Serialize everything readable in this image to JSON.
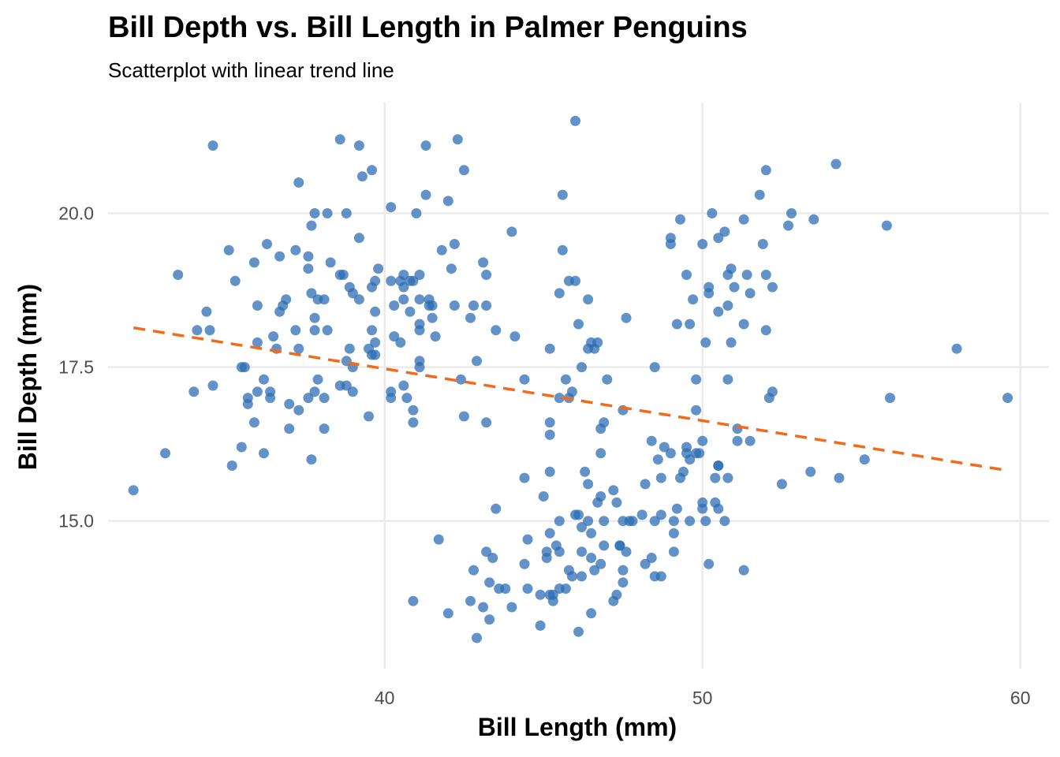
{
  "chart_data": {
    "type": "scatter",
    "title": "Bill Depth vs. Bill Length in Palmer Penguins",
    "subtitle": "Scatterplot with linear trend line",
    "xlabel": "Bill Length (mm)",
    "ylabel": "Bill Depth (mm)",
    "xlim": [
      31.3,
      60.9
    ],
    "ylim": [
      12.6,
      21.8
    ],
    "xticks": [
      40,
      50,
      60
    ],
    "xtick_labels": [
      "40",
      "50",
      "60"
    ],
    "yticks": [
      15,
      17.5,
      20
    ],
    "ytick_labels": [
      "15.0",
      "17.5",
      "20.0"
    ],
    "grid": true,
    "legend": "none",
    "point_color": "#2e6db4",
    "trend_color": "#f26b1d",
    "trend_line": {
      "style": "dashed",
      "x": [
        32.1,
        59.6
      ],
      "y": [
        18.14,
        15.82
      ]
    },
    "points": [
      [
        32.1,
        15.5
      ],
      [
        33.1,
        16.1
      ],
      [
        33.5,
        19.0
      ],
      [
        34.0,
        17.1
      ],
      [
        34.1,
        18.1
      ],
      [
        34.4,
        18.4
      ],
      [
        34.5,
        18.1
      ],
      [
        34.6,
        21.1
      ],
      [
        34.6,
        17.2
      ],
      [
        35.1,
        19.4
      ],
      [
        35.2,
        15.9
      ],
      [
        35.3,
        18.9
      ],
      [
        35.5,
        16.2
      ],
      [
        35.5,
        17.5
      ],
      [
        35.6,
        17.5
      ],
      [
        35.7,
        16.9
      ],
      [
        35.7,
        17.0
      ],
      [
        35.9,
        19.2
      ],
      [
        35.9,
        16.6
      ],
      [
        36.0,
        18.5
      ],
      [
        36.0,
        17.9
      ],
      [
        36.0,
        17.1
      ],
      [
        36.2,
        17.3
      ],
      [
        36.2,
        16.1
      ],
      [
        36.3,
        19.5
      ],
      [
        36.4,
        17.1
      ],
      [
        36.4,
        17.0
      ],
      [
        36.5,
        18.0
      ],
      [
        36.6,
        17.8
      ],
      [
        36.7,
        18.4
      ],
      [
        36.7,
        19.3
      ],
      [
        36.8,
        18.5
      ],
      [
        36.9,
        18.6
      ],
      [
        37.0,
        16.9
      ],
      [
        37.0,
        16.5
      ],
      [
        37.2,
        19.4
      ],
      [
        37.2,
        18.1
      ],
      [
        37.3,
        20.5
      ],
      [
        37.3,
        17.8
      ],
      [
        37.3,
        16.8
      ],
      [
        37.6,
        19.3
      ],
      [
        37.6,
        19.1
      ],
      [
        37.6,
        17.0
      ],
      [
        37.7,
        18.7
      ],
      [
        37.7,
        16.0
      ],
      [
        37.7,
        19.8
      ],
      [
        37.8,
        20.0
      ],
      [
        37.8,
        18.3
      ],
      [
        37.8,
        18.1
      ],
      [
        37.8,
        17.1
      ],
      [
        37.9,
        18.6
      ],
      [
        37.9,
        17.3
      ],
      [
        38.1,
        18.6
      ],
      [
        38.1,
        17.0
      ],
      [
        38.1,
        16.5
      ],
      [
        38.2,
        18.1
      ],
      [
        38.2,
        20.0
      ],
      [
        38.3,
        19.2
      ],
      [
        38.6,
        21.2
      ],
      [
        38.6,
        17.2
      ],
      [
        38.6,
        19.0
      ],
      [
        38.7,
        19.0
      ],
      [
        38.8,
        17.2
      ],
      [
        38.8,
        20.0
      ],
      [
        38.8,
        17.6
      ],
      [
        38.9,
        18.8
      ],
      [
        38.9,
        17.8
      ],
      [
        39.0,
        17.5
      ],
      [
        39.0,
        17.1
      ],
      [
        39.0,
        18.7
      ],
      [
        39.2,
        19.6
      ],
      [
        39.2,
        21.1
      ],
      [
        39.2,
        18.6
      ],
      [
        39.3,
        20.6
      ],
      [
        39.5,
        16.7
      ],
      [
        39.5,
        17.8
      ],
      [
        39.6,
        18.8
      ],
      [
        39.6,
        18.1
      ],
      [
        39.6,
        17.7
      ],
      [
        39.6,
        20.7
      ],
      [
        39.7,
        18.9
      ],
      [
        39.7,
        18.4
      ],
      [
        39.7,
        17.9
      ],
      [
        39.7,
        17.7
      ],
      [
        39.8,
        19.1
      ],
      [
        40.2,
        17.0
      ],
      [
        40.2,
        17.1
      ],
      [
        40.2,
        18.9
      ],
      [
        40.2,
        20.1
      ],
      [
        40.3,
        18.5
      ],
      [
        40.3,
        18.0
      ],
      [
        40.5,
        18.9
      ],
      [
        40.5,
        17.9
      ],
      [
        40.6,
        18.6
      ],
      [
        40.6,
        19.0
      ],
      [
        40.6,
        18.8
      ],
      [
        40.6,
        17.2
      ],
      [
        40.7,
        17.0
      ],
      [
        40.8,
        18.4
      ],
      [
        40.8,
        18.9
      ],
      [
        40.9,
        16.6
      ],
      [
        40.9,
        18.9
      ],
      [
        40.9,
        16.8
      ],
      [
        41.0,
        20.0
      ],
      [
        41.1,
        19.0
      ],
      [
        41.1,
        18.6
      ],
      [
        41.1,
        17.5
      ],
      [
        41.1,
        18.2
      ],
      [
        41.1,
        18.1
      ],
      [
        41.1,
        17.6
      ],
      [
        41.3,
        21.1
      ],
      [
        41.3,
        20.3
      ],
      [
        41.4,
        18.6
      ],
      [
        41.4,
        18.5
      ],
      [
        41.5,
        18.3
      ],
      [
        41.5,
        18.5
      ],
      [
        41.6,
        18.0
      ],
      [
        41.8,
        19.4
      ],
      [
        42.0,
        20.2
      ],
      [
        42.1,
        19.1
      ],
      [
        42.2,
        18.5
      ],
      [
        42.2,
        19.5
      ],
      [
        42.3,
        21.2
      ],
      [
        42.4,
        17.3
      ],
      [
        42.5,
        20.7
      ],
      [
        42.5,
        16.7
      ],
      [
        42.7,
        18.3
      ],
      [
        42.8,
        18.5
      ],
      [
        42.9,
        17.6
      ],
      [
        43.1,
        19.2
      ],
      [
        43.2,
        19.0
      ],
      [
        43.2,
        18.5
      ],
      [
        43.2,
        16.6
      ],
      [
        43.5,
        18.1
      ],
      [
        44.0,
        19.7
      ],
      [
        44.1,
        18.0
      ],
      [
        44.4,
        17.3
      ],
      [
        45.2,
        17.8
      ],
      [
        45.2,
        16.6
      ],
      [
        45.2,
        16.4
      ],
      [
        45.6,
        20.3
      ],
      [
        45.6,
        19.4
      ],
      [
        45.5,
        18.7
      ],
      [
        45.7,
        17.3
      ],
      [
        45.8,
        18.9
      ],
      [
        45.8,
        17.0
      ],
      [
        46.0,
        18.9
      ],
      [
        46.0,
        21.5
      ],
      [
        46.1,
        18.2
      ],
      [
        46.2,
        17.5
      ],
      [
        45.5,
        17.0
      ],
      [
        46.4,
        17.8
      ],
      [
        46.4,
        18.6
      ],
      [
        46.5,
        17.9
      ],
      [
        46.6,
        17.8
      ],
      [
        46.7,
        17.9
      ],
      [
        46.8,
        16.5
      ],
      [
        46.9,
        16.6
      ],
      [
        47.0,
        17.3
      ],
      [
        47.6,
        18.3
      ],
      [
        47.5,
        16.8
      ],
      [
        45.9,
        17.1
      ],
      [
        48.5,
        17.5
      ],
      [
        49.0,
        19.5
      ],
      [
        49.0,
        19.6
      ],
      [
        49.2,
        18.2
      ],
      [
        49.3,
        19.9
      ],
      [
        49.5,
        19.0
      ],
      [
        49.6,
        18.2
      ],
      [
        49.7,
        18.6
      ],
      [
        49.8,
        17.3
      ],
      [
        49.8,
        16.8
      ],
      [
        50.1,
        17.9
      ],
      [
        50.2,
        18.7
      ],
      [
        50.2,
        18.8
      ],
      [
        50.3,
        20.0
      ],
      [
        50.5,
        18.4
      ],
      [
        50.5,
        19.6
      ],
      [
        50.7,
        19.7
      ],
      [
        50.8,
        19.0
      ],
      [
        50.8,
        18.5
      ],
      [
        50.9,
        17.9
      ],
      [
        50.9,
        19.1
      ],
      [
        51.0,
        18.8
      ],
      [
        51.3,
        19.9
      ],
      [
        51.3,
        18.2
      ],
      [
        51.4,
        19.0
      ],
      [
        51.5,
        18.7
      ],
      [
        51.9,
        19.5
      ],
      [
        52.0,
        19.0
      ],
      [
        52.0,
        18.1
      ],
      [
        52.2,
        18.8
      ],
      [
        52.0,
        20.7
      ],
      [
        51.8,
        20.3
      ],
      [
        52.7,
        19.8
      ],
      [
        52.8,
        20.0
      ],
      [
        53.5,
        19.9
      ],
      [
        54.2,
        20.8
      ],
      [
        55.8,
        19.8
      ],
      [
        50.0,
        19.5
      ],
      [
        50.8,
        17.3
      ],
      [
        52.1,
        17.0
      ],
      [
        52.2,
        17.1
      ],
      [
        58.0,
        17.8
      ],
      [
        59.6,
        17.0
      ],
      [
        55.9,
        17.0
      ],
      [
        41.7,
        14.7
      ],
      [
        40.9,
        13.7
      ],
      [
        42.0,
        13.5
      ],
      [
        42.7,
        13.7
      ],
      [
        42.8,
        14.2
      ],
      [
        42.9,
        13.1
      ],
      [
        43.2,
        14.5
      ],
      [
        43.3,
        13.4
      ],
      [
        43.3,
        14.0
      ],
      [
        43.4,
        14.4
      ],
      [
        43.5,
        15.2
      ],
      [
        43.6,
        13.9
      ],
      [
        43.8,
        13.9
      ],
      [
        44.0,
        13.6
      ],
      [
        44.4,
        15.7
      ],
      [
        44.4,
        14.3
      ],
      [
        44.5,
        14.7
      ],
      [
        44.9,
        13.8
      ],
      [
        44.9,
        13.3
      ],
      [
        45.0,
        15.4
      ],
      [
        45.1,
        14.5
      ],
      [
        45.1,
        14.4
      ],
      [
        45.2,
        15.8
      ],
      [
        45.2,
        14.8
      ],
      [
        45.2,
        13.8
      ],
      [
        45.3,
        13.7
      ],
      [
        45.3,
        13.8
      ],
      [
        45.4,
        14.6
      ],
      [
        45.5,
        13.9
      ],
      [
        45.5,
        15.0
      ],
      [
        45.5,
        14.5
      ],
      [
        45.7,
        13.9
      ],
      [
        45.8,
        14.2
      ],
      [
        46.1,
        13.2
      ],
      [
        46.1,
        15.1
      ],
      [
        46.2,
        14.5
      ],
      [
        46.2,
        14.1
      ],
      [
        46.2,
        14.9
      ],
      [
        46.3,
        15.8
      ],
      [
        46.4,
        15.6
      ],
      [
        46.4,
        15.0
      ],
      [
        46.5,
        14.8
      ],
      [
        46.5,
        14.4
      ],
      [
        46.5,
        13.5
      ],
      [
        46.6,
        14.2
      ],
      [
        46.7,
        15.3
      ],
      [
        46.8,
        15.4
      ],
      [
        46.8,
        14.3
      ],
      [
        46.8,
        16.1
      ],
      [
        46.9,
        14.6
      ],
      [
        47.2,
        15.5
      ],
      [
        47.2,
        13.7
      ],
      [
        47.3,
        13.8
      ],
      [
        47.3,
        15.3
      ],
      [
        47.4,
        14.6
      ],
      [
        47.5,
        14.0
      ],
      [
        47.5,
        15.0
      ],
      [
        47.5,
        14.2
      ],
      [
        47.6,
        14.5
      ],
      [
        47.7,
        15.0
      ],
      [
        47.8,
        15.0
      ],
      [
        48.1,
        15.1
      ],
      [
        48.2,
        15.6
      ],
      [
        48.2,
        14.3
      ],
      [
        48.4,
        16.3
      ],
      [
        48.4,
        14.4
      ],
      [
        48.5,
        15.0
      ],
      [
        48.5,
        14.1
      ],
      [
        48.6,
        16.0
      ],
      [
        48.7,
        15.7
      ],
      [
        48.7,
        15.1
      ],
      [
        48.7,
        14.1
      ],
      [
        48.8,
        16.2
      ],
      [
        49.0,
        16.1
      ],
      [
        49.1,
        15.0
      ],
      [
        49.1,
        14.8
      ],
      [
        49.1,
        14.5
      ],
      [
        49.2,
        15.2
      ],
      [
        49.3,
        15.7
      ],
      [
        49.4,
        15.8
      ],
      [
        49.5,
        16.2
      ],
      [
        49.5,
        16.1
      ],
      [
        49.6,
        16.0
      ],
      [
        49.6,
        15.0
      ],
      [
        49.8,
        16.1
      ],
      [
        49.9,
        16.1
      ],
      [
        50.0,
        15.2
      ],
      [
        50.0,
        15.3
      ],
      [
        50.0,
        16.3
      ],
      [
        50.1,
        15.0
      ],
      [
        50.2,
        14.3
      ],
      [
        50.4,
        15.7
      ],
      [
        50.4,
        15.3
      ],
      [
        50.5,
        15.9
      ],
      [
        50.5,
        15.2
      ],
      [
        50.5,
        15.9
      ],
      [
        50.7,
        15.0
      ],
      [
        50.8,
        15.7
      ],
      [
        51.1,
        16.5
      ],
      [
        51.1,
        16.3
      ],
      [
        51.3,
        14.2
      ],
      [
        51.5,
        16.3
      ],
      [
        52.5,
        15.6
      ],
      [
        53.4,
        15.8
      ],
      [
        54.3,
        15.7
      ],
      [
        55.1,
        16.0
      ],
      [
        46.0,
        15.1
      ],
      [
        45.9,
        14.1
      ],
      [
        43.1,
        13.6
      ],
      [
        46.9,
        15.0
      ],
      [
        47.4,
        14.6
      ],
      [
        44.5,
        13.9
      ]
    ]
  }
}
